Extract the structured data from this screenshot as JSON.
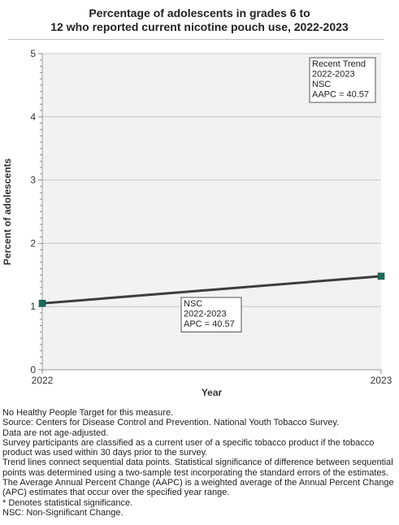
{
  "title_lines": [
    "Percentage of adolescents in grades 6 to",
    "12 who reported current nicotine pouch use, 2022-2023"
  ],
  "chart_data": {
    "type": "line",
    "title": "Percentage of adolescents in grades 6 to 12 who reported current nicotine pouch use, 2022-2023",
    "xlabel": "Year",
    "ylabel": "Percent of adolescents",
    "x": [
      2022,
      2023
    ],
    "x_tick_labels": [
      "2022",
      "2023"
    ],
    "ylim": [
      0,
      5
    ],
    "y_ticks": [
      0,
      1,
      2,
      3,
      4,
      5
    ],
    "grid": true,
    "series": [
      {
        "values": [
          1.05,
          1.48
        ],
        "color": "#3d3d3d",
        "marker_color": "#1b6b5a"
      }
    ],
    "annotations": {
      "recent_trend": [
        "Recent Trend",
        "2022-2023",
        "NSC",
        "AAPC = 40.57"
      ],
      "segment": [
        "NSC",
        "2022-2023",
        "APC = 40.57"
      ]
    }
  },
  "notes": [
    "No Healthy People Target for this measure.",
    "Source: Centers for Disease Control and Prevention. National Youth Tobacco Survey.",
    "Data are not age-adjusted.",
    "Survey participants are classified as a current user of a specific tobacco product if the tobacco product was used within 30 days prior to the survey.",
    "Trend lines connect sequential data points. Statistical significance of difference between sequential points was determined using a two-sample test incorporating the standard errors of the estimates.",
    "The Average Annual Percent Change (AAPC) is a weighted average of the Annual Percent Change (APC) estimates that occur over the specified year range.",
    "* Denotes statistical significance.",
    "NSC: Non-Significant Change."
  ]
}
